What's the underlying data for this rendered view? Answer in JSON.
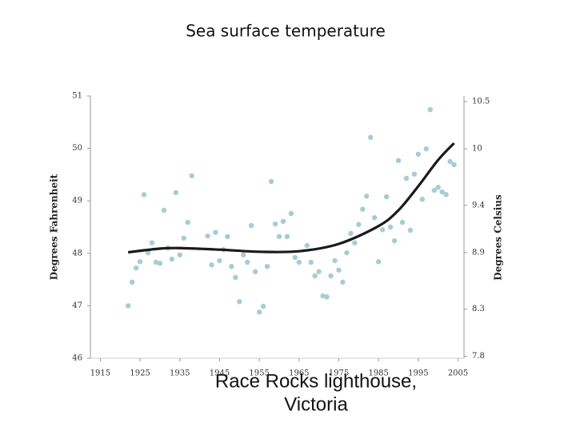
{
  "chart_data": {
    "type": "scatter",
    "title": "Sea surface temperature",
    "y_label": "Degrees Fahrenheit",
    "y2_label": "Degrees Celsius",
    "caption": [
      "Race Rocks lighthouse,",
      "Victoria"
    ],
    "xlim": [
      1912.5,
      2006.5
    ],
    "xticks": [
      1915,
      1925,
      1935,
      1945,
      1955,
      1965,
      1975,
      1985,
      1995,
      2005
    ],
    "ylim": [
      46,
      51
    ],
    "yticks": [
      46,
      47,
      48,
      49,
      50,
      51
    ],
    "y2lim": [
      7.78,
      10.56
    ],
    "y2ticks": [
      7.8,
      8.3,
      8.9,
      9.4,
      10,
      10.5
    ],
    "series": [
      {
        "type": "scatter",
        "color": "#a6ccd5",
        "x": [
          1922,
          1923,
          1924,
          1925,
          1926,
          1927,
          1928,
          1929,
          1930,
          1931,
          1932,
          1933,
          1934,
          1935,
          1936,
          1937,
          1938,
          1942,
          1943,
          1944,
          1945,
          1946,
          1947,
          1948,
          1949,
          1950,
          1951,
          1952,
          1953,
          1954,
          1955,
          1956,
          1957,
          1958,
          1959,
          1960,
          1961,
          1962,
          1963,
          1964,
          1965,
          1967,
          1968,
          1969,
          1970,
          1971,
          1972,
          1973,
          1974,
          1975,
          1976,
          1977,
          1978,
          1979,
          1980,
          1981,
          1982,
          1983,
          1984,
          1985,
          1986,
          1987,
          1988,
          1989,
          1990,
          1991,
          1992,
          1993,
          1994,
          1995,
          1996,
          1997,
          1998,
          1999,
          2000,
          2001,
          2002,
          2003,
          2004
        ],
        "values": [
          47.0,
          47.45,
          47.72,
          47.84,
          49.12,
          48.01,
          48.2,
          47.83,
          47.81,
          48.82,
          48.1,
          47.89,
          49.16,
          47.97,
          48.29,
          48.59,
          49.48,
          48.33,
          47.78,
          48.4,
          47.86,
          48.07,
          48.32,
          47.75,
          47.54,
          47.08,
          47.97,
          47.83,
          48.53,
          47.65,
          46.88,
          46.99,
          47.75,
          49.37,
          48.56,
          48.32,
          48.61,
          48.32,
          48.76,
          47.92,
          47.83,
          48.15,
          47.83,
          47.57,
          47.65,
          47.19,
          47.17,
          47.57,
          47.86,
          47.68,
          47.45,
          48.01,
          48.38,
          48.2,
          48.55,
          48.84,
          49.09,
          50.21,
          48.68,
          47.84,
          48.45,
          49.08,
          48.5,
          48.24,
          49.77,
          48.59,
          49.43,
          48.44,
          49.51,
          49.89,
          49.03,
          49.99,
          50.74,
          49.2,
          49.26,
          49.17,
          49.12,
          49.75,
          49.69
        ]
      },
      {
        "type": "line",
        "color": "#1a1a1a",
        "x": [
          1922,
          1930,
          1935,
          1945,
          1955,
          1965,
          1975,
          1985,
          1990,
          1995,
          2000,
          2004
        ],
        "values": [
          48.02,
          48.09,
          48.1,
          48.07,
          48.03,
          48.04,
          48.18,
          48.52,
          48.82,
          49.28,
          49.78,
          50.1
        ]
      }
    ]
  }
}
